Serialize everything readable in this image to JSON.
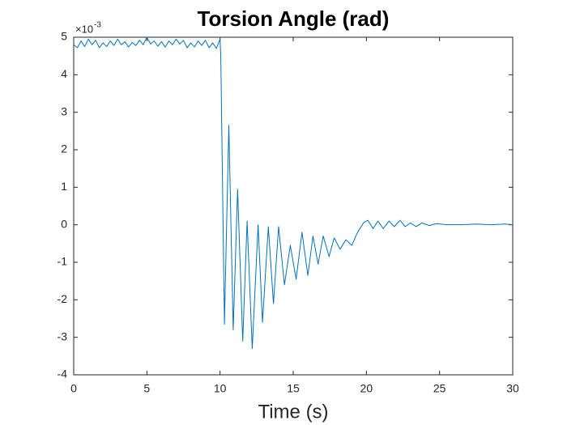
{
  "chart_data": {
    "type": "line",
    "title": "Torsion Angle (rad)",
    "x_label": "Time (s)",
    "y_multiplier": "×10",
    "y_exponent": "-3",
    "x": [
      0,
      0.25,
      0.5,
      0.75,
      1,
      1.25,
      1.5,
      1.75,
      2,
      2.25,
      2.5,
      2.75,
      3,
      3.25,
      3.5,
      3.75,
      4,
      4.25,
      4.5,
      4.75,
      5,
      5.25,
      5.5,
      5.75,
      6,
      6.25,
      6.5,
      6.75,
      7,
      7.25,
      7.5,
      7.75,
      8,
      8.25,
      8.5,
      8.75,
      9,
      9.25,
      9.5,
      9.75,
      10,
      10.05,
      10.3,
      10.6,
      10.9,
      11.2,
      11.55,
      11.85,
      12.2,
      12.6,
      12.9,
      13.3,
      13.65,
      14,
      14.4,
      14.8,
      15.2,
      15.6,
      16,
      16.35,
      16.7,
      17.05,
      17.45,
      17.8,
      18.2,
      18.6,
      19,
      19.4,
      19.8,
      20.1,
      20.45,
      20.8,
      21.15,
      21.55,
      21.9,
      22.3,
      22.65,
      23,
      23.4,
      23.8,
      24.3,
      24.8,
      25.5,
      26.5,
      27.5,
      28.5,
      29.5,
      30
    ],
    "series": [
      {
        "name": "Torsion Angle",
        "color": "#0072bd",
        "values": [
          4.8,
          4.72,
          4.9,
          4.75,
          4.95,
          4.8,
          4.92,
          4.72,
          4.85,
          4.75,
          4.9,
          4.78,
          4.95,
          4.8,
          4.88,
          4.74,
          4.86,
          4.78,
          4.92,
          4.8,
          5.0,
          4.82,
          4.9,
          4.76,
          4.88,
          4.74,
          4.9,
          4.8,
          4.95,
          4.82,
          4.92,
          4.72,
          4.85,
          4.74,
          4.9,
          4.78,
          4.92,
          4.72,
          4.85,
          4.7,
          4.95,
          4.5,
          -2.65,
          2.65,
          -2.8,
          0.95,
          -3.1,
          0.1,
          -3.3,
          0.0,
          -2.6,
          -0.05,
          -2.1,
          -0.05,
          -1.6,
          -0.55,
          -1.45,
          -0.2,
          -1.35,
          -0.3,
          -1.05,
          -0.3,
          -0.85,
          -0.35,
          -0.65,
          -0.4,
          -0.55,
          -0.2,
          0.05,
          0.12,
          -0.1,
          0.1,
          -0.1,
          0.1,
          -0.05,
          0.12,
          -0.05,
          0.05,
          -0.05,
          0.05,
          -0.02,
          0.03,
          0.0,
          0.0,
          0.02,
          0.0,
          0.02,
          0.0
        ]
      }
    ],
    "xlim": [
      0,
      30
    ],
    "xticks": [
      0,
      5,
      10,
      15,
      20,
      25,
      30
    ],
    "ylim": [
      -4,
      5
    ],
    "yticks": [
      -4,
      -3,
      -2,
      -1,
      0,
      1,
      2,
      3,
      4,
      5
    ],
    "grid": false
  }
}
